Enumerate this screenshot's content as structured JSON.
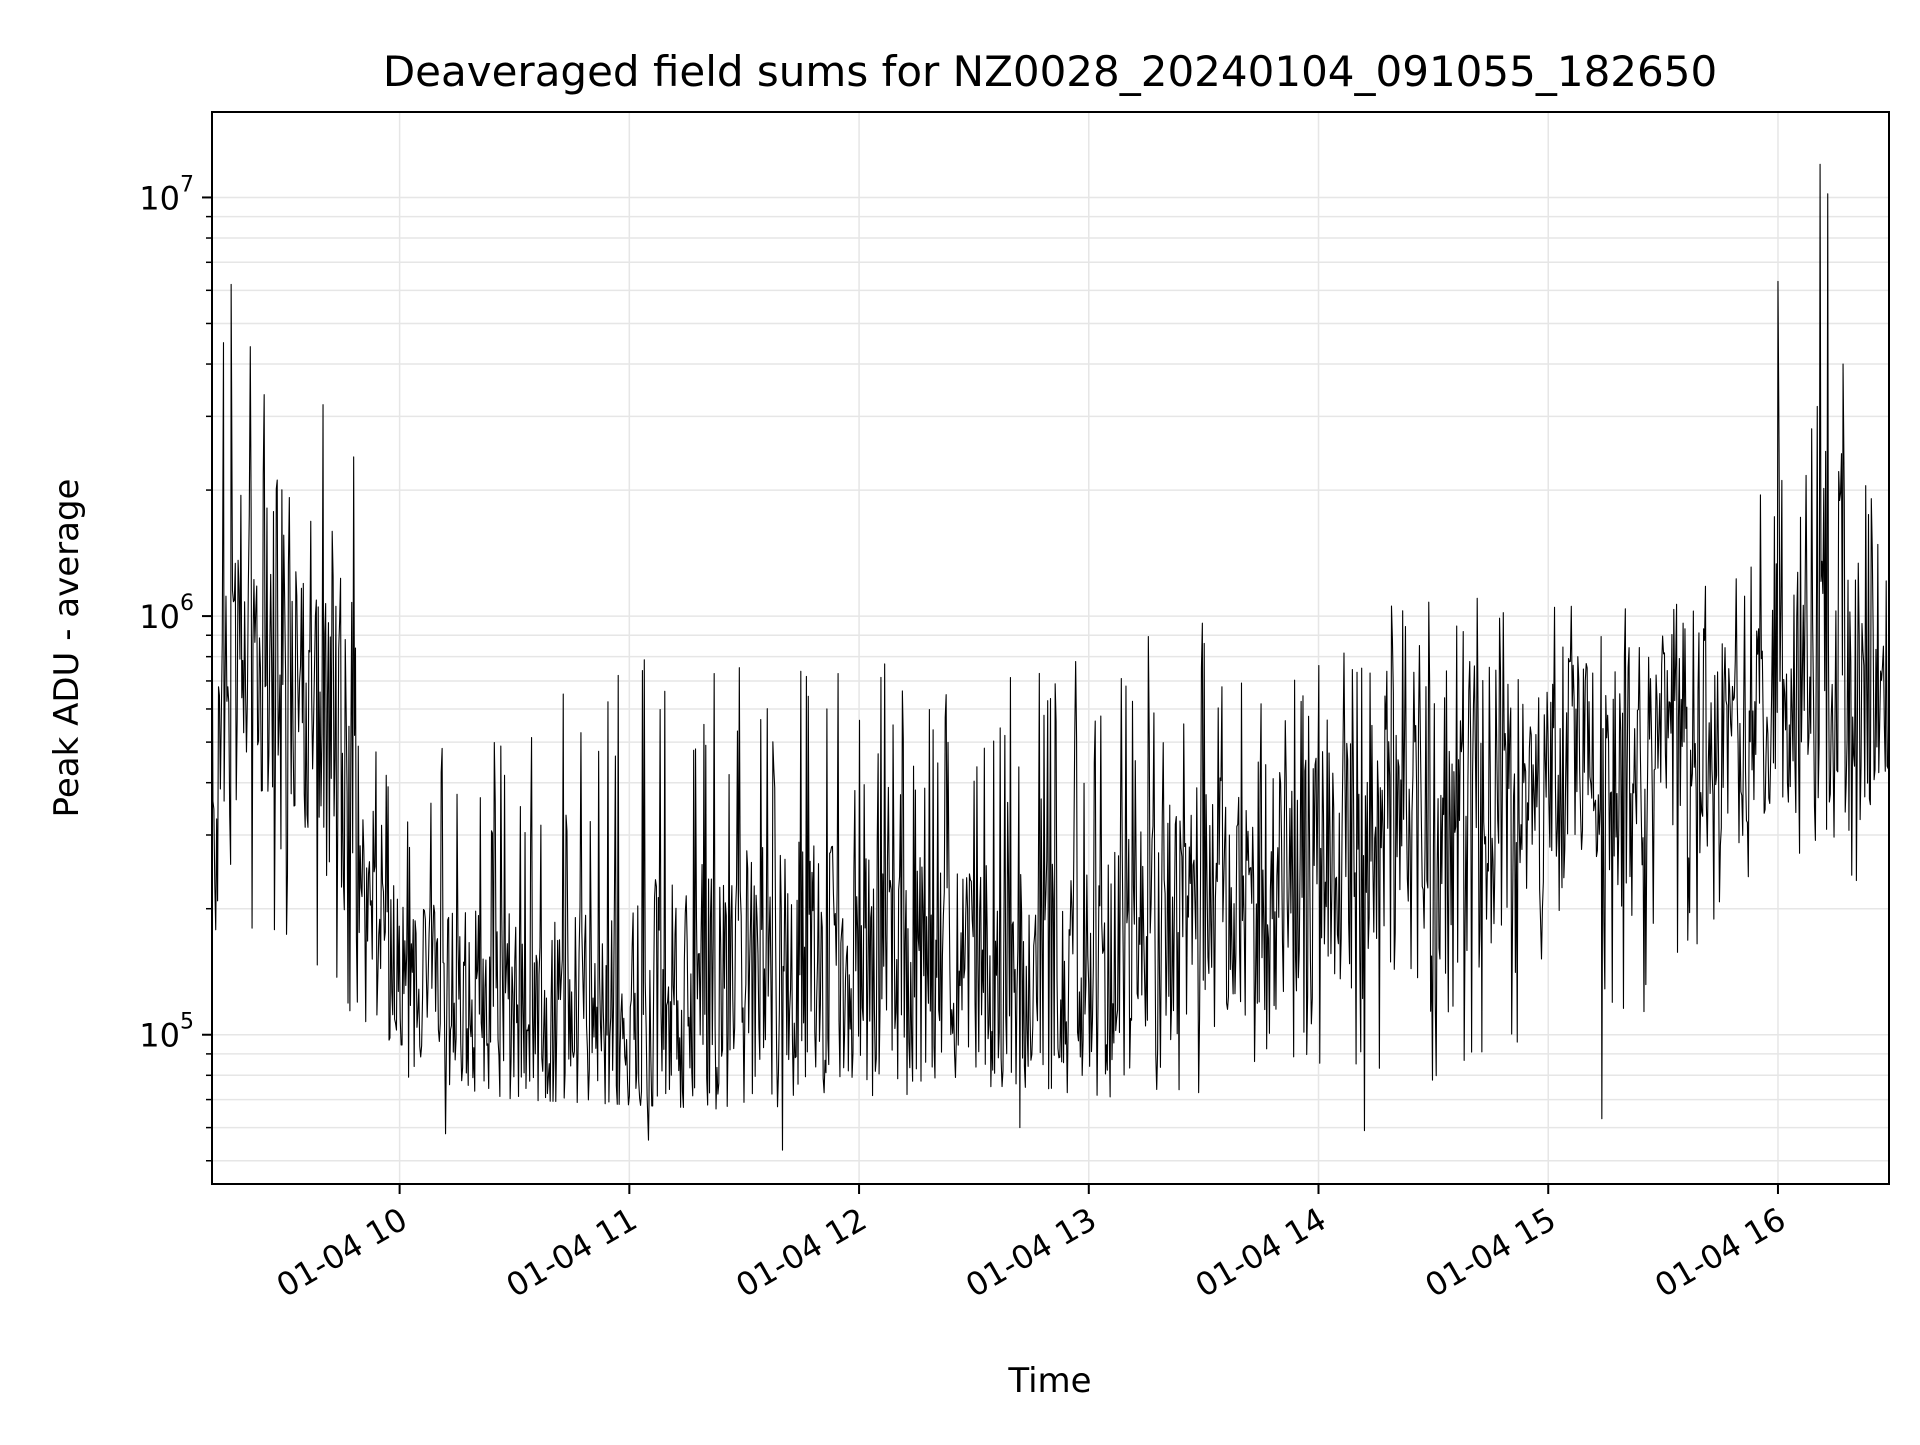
{
  "chart_data": {
    "type": "line",
    "title": "Deaveraged field sums for NZ0028_20240104_091055_182650",
    "xlabel": "Time",
    "ylabel": "Peak ADU - average",
    "x_is_time": true,
    "yscale": "log",
    "grid": true,
    "xlim": [
      "2024-01-04T09:11:00",
      "2024-01-04T16:29:00"
    ],
    "ylim": [
      44000,
      16000000
    ],
    "x_ticks": [
      {
        "t": "2024-01-04T10:00:00",
        "label": "01-04 10"
      },
      {
        "t": "2024-01-04T11:00:00",
        "label": "01-04 11"
      },
      {
        "t": "2024-01-04T12:00:00",
        "label": "01-04 12"
      },
      {
        "t": "2024-01-04T13:00:00",
        "label": "01-04 13"
      },
      {
        "t": "2024-01-04T14:00:00",
        "label": "01-04 14"
      },
      {
        "t": "2024-01-04T15:00:00",
        "label": "01-04 15"
      },
      {
        "t": "2024-01-04T16:00:00",
        "label": "01-04 16"
      }
    ],
    "y_ticks": [
      {
        "value": 100000,
        "base": "10",
        "exp": "5"
      },
      {
        "value": 1000000,
        "base": "10",
        "exp": "6"
      },
      {
        "value": 10000000,
        "base": "10",
        "exp": "7"
      }
    ],
    "line_color": "#000000",
    "series": [
      {
        "envelope": [
          {
            "t": "2024-01-04T09:11:00",
            "low": 130000,
            "mid": 400000,
            "high": 1500000
          },
          {
            "t": "2024-01-04T09:20:00",
            "low": 180000,
            "mid": 1000000,
            "high": 4500000
          },
          {
            "t": "2024-01-04T09:30:00",
            "low": 150000,
            "mid": 800000,
            "high": 3000000
          },
          {
            "t": "2024-01-04T09:40:00",
            "low": 120000,
            "mid": 500000,
            "high": 2000000
          },
          {
            "t": "2024-01-04T09:50:00",
            "low": 110000,
            "mid": 280000,
            "high": 900000
          },
          {
            "t": "2024-01-04T10:00:00",
            "low": 80000,
            "mid": 130000,
            "high": 500000
          },
          {
            "t": "2024-01-04T10:30:00",
            "low": 70000,
            "mid": 110000,
            "high": 600000
          },
          {
            "t": "2024-01-04T11:00:00",
            "low": 68000,
            "mid": 115000,
            "high": 800000
          },
          {
            "t": "2024-01-04T11:30:00",
            "low": 66000,
            "mid": 140000,
            "high": 900000
          },
          {
            "t": "2024-01-04T12:00:00",
            "low": 70000,
            "mid": 150000,
            "high": 800000
          },
          {
            "t": "2024-01-04T12:30:00",
            "low": 68000,
            "mid": 135000,
            "high": 700000
          },
          {
            "t": "2024-01-04T13:00:00",
            "low": 70000,
            "mid": 140000,
            "high": 800000
          },
          {
            "t": "2024-01-04T13:30:00",
            "low": 72000,
            "mid": 200000,
            "high": 1000000
          },
          {
            "t": "2024-01-04T14:00:00",
            "low": 72000,
            "mid": 250000,
            "high": 1000000
          },
          {
            "t": "2024-01-04T14:30:00",
            "low": 75000,
            "mid": 300000,
            "high": 1100000
          },
          {
            "t": "2024-01-04T15:00:00",
            "low": 80000,
            "mid": 380000,
            "high": 1200000
          },
          {
            "t": "2024-01-04T15:30:00",
            "low": 120000,
            "mid": 450000,
            "high": 1100000
          },
          {
            "t": "2024-01-04T15:50:00",
            "low": 200000,
            "mid": 500000,
            "high": 1500000
          },
          {
            "t": "2024-01-04T16:00:00",
            "low": 260000,
            "mid": 600000,
            "high": 2500000
          },
          {
            "t": "2024-01-04T16:10:00",
            "low": 280000,
            "mid": 700000,
            "high": 4000000
          },
          {
            "t": "2024-01-04T16:20:00",
            "low": 230000,
            "mid": 550000,
            "high": 2000000
          },
          {
            "t": "2024-01-04T16:29:00",
            "low": 300000,
            "mid": 700000,
            "high": 2500000
          }
        ],
        "peaks": [
          {
            "t": "2024-01-04T09:14:00",
            "value": 4500000
          },
          {
            "t": "2024-01-04T09:16:00",
            "value": 6200000
          },
          {
            "t": "2024-01-04T09:21:00",
            "value": 4400000
          },
          {
            "t": "2024-01-04T09:40:00",
            "value": 3200000
          },
          {
            "t": "2024-01-04T09:48:00",
            "value": 2400000
          },
          {
            "t": "2024-01-04T16:00:00",
            "value": 6300000
          },
          {
            "t": "2024-01-04T16:11:00",
            "value": 12000000
          },
          {
            "t": "2024-01-04T16:13:00",
            "value": 10200000
          },
          {
            "t": "2024-01-04T16:17:00",
            "value": 4000000
          }
        ],
        "troughs": [
          {
            "t": "2024-01-04T10:12:00",
            "value": 58000
          },
          {
            "t": "2024-01-04T11:05:00",
            "value": 56000
          },
          {
            "t": "2024-01-04T11:40:00",
            "value": 53000
          },
          {
            "t": "2024-01-04T12:42:00",
            "value": 60000
          },
          {
            "t": "2024-01-04T14:12:00",
            "value": 59000
          },
          {
            "t": "2024-01-04T15:14:00",
            "value": 63000
          }
        ]
      }
    ]
  }
}
